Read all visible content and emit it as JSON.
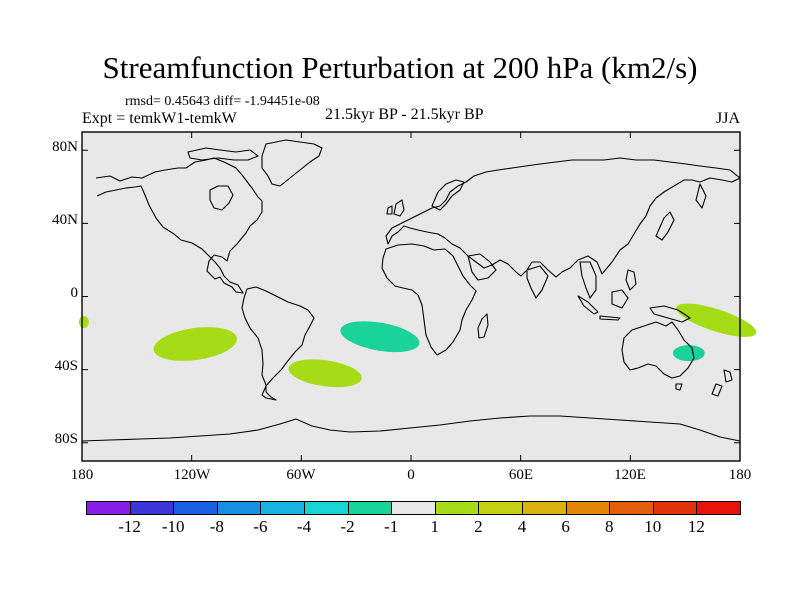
{
  "figure": {
    "title": "Streamfunction Perturbation at 200 hPa (km2/s)",
    "rmsd_text": "rmsd= 0.45643 diff= -1.94451e-08",
    "experiment": "Expt = temkW1-temkW",
    "period": "21.5kyr BP - 21.5kyr BP",
    "season": "JJA"
  },
  "map": {
    "background_color": "#e8e8e8",
    "y_axis_labels": [
      "80N",
      "40N",
      "0",
      "40S",
      "80S"
    ],
    "x_axis_labels": [
      "180",
      "120W",
      "60W",
      "0",
      "60E",
      "120E",
      "180"
    ],
    "anomalies": [
      {
        "name": "south-pacific-anomaly",
        "lon": -118,
        "lat": -26,
        "color": "#a6dc16"
      },
      {
        "name": "south-atlantic-west-anomaly",
        "lon": -47,
        "lat": -42,
        "color": "#a6dc16"
      },
      {
        "name": "south-atlantic-east-anomaly",
        "lon": -17,
        "lat": -22,
        "color": "#1ad39b"
      },
      {
        "name": "australia-east-anomaly",
        "lon": 152,
        "lat": -31,
        "color": "#1ad39b"
      },
      {
        "name": "coral-sea-anomaly",
        "lon": 167,
        "lat": -13,
        "color": "#a6dc16"
      },
      {
        "name": "west-edge-anomaly",
        "lon": -179,
        "lat": -14,
        "color": "#a6dc16"
      }
    ]
  },
  "colorbar": {
    "colors": [
      "#8a1ee8",
      "#3d35d8",
      "#1b5ee0",
      "#1a8ee0",
      "#1ab3e0",
      "#18d4d4",
      "#1ad39b",
      "#e8e8e8",
      "#a6dc16",
      "#c6d012",
      "#dcb20e",
      "#e3870b",
      "#e35e0b",
      "#df3407",
      "#e8120a"
    ],
    "labels": [
      "-12",
      "-10",
      "-8",
      "-6",
      "-4",
      "-2",
      "-1",
      "1",
      "2",
      "4",
      "6",
      "8",
      "10",
      "12"
    ]
  }
}
